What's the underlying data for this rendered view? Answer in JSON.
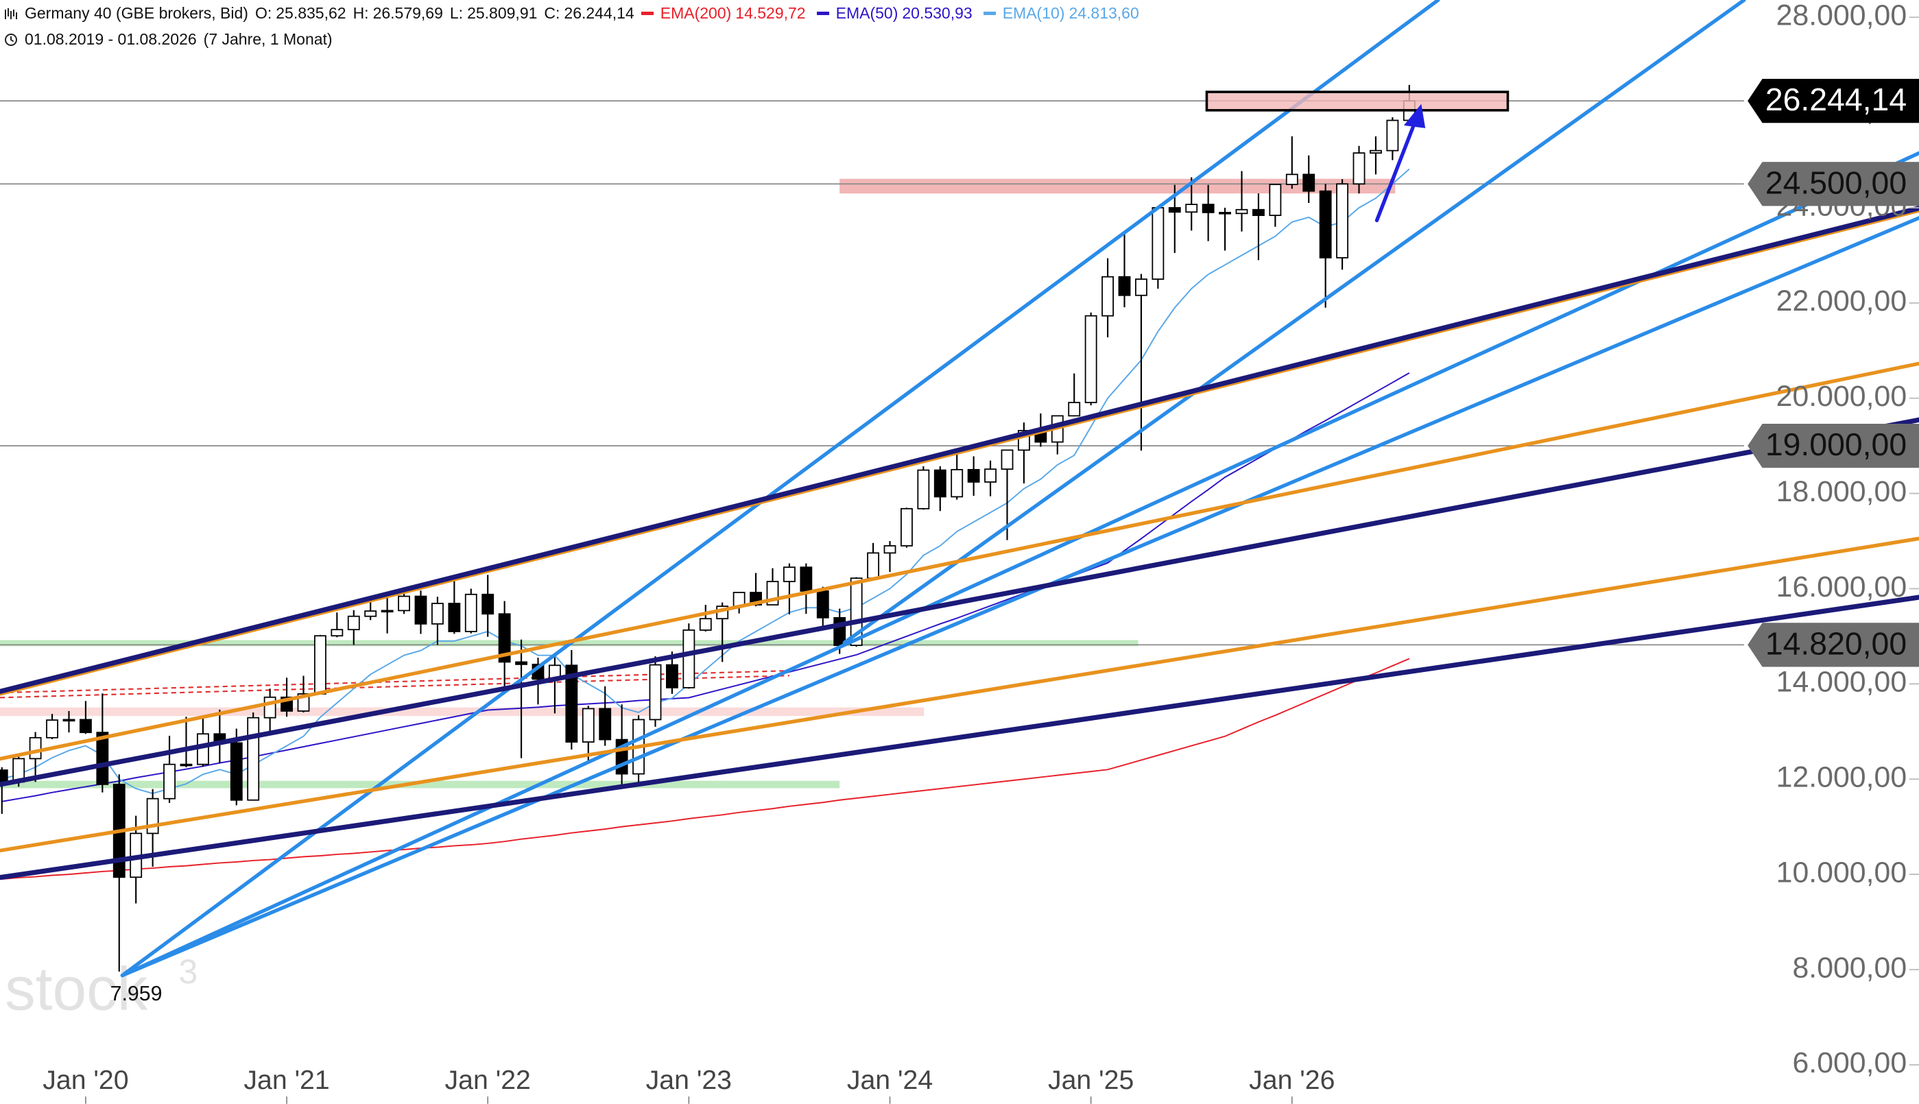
{
  "chart_data": {
    "type": "candlestick",
    "title": "Germany 40 (GBE brokers, Bid)",
    "quote": [
      {
        "key": "O:",
        "label": "25.835,62"
      },
      {
        "key": "H:",
        "label": "26.579,69"
      },
      {
        "key": "L:",
        "label": "25.809,91"
      },
      {
        "key": "C:",
        "label": "26.244,14"
      }
    ],
    "date_range": "01.08.2019 - 01.08.2026",
    "duration": "(7 Jahre, 1 Monat)",
    "categories": [
      null,
      null,
      null,
      null,
      null,
      "Jan '20",
      null,
      null,
      null,
      null,
      null,
      null,
      null,
      null,
      null,
      null,
      null,
      "Jan '21",
      null,
      null,
      null,
      null,
      null,
      null,
      null,
      null,
      null,
      null,
      null,
      "Jan '22",
      null,
      null,
      null,
      null,
      null,
      null,
      null,
      null,
      null,
      null,
      null,
      "Jan '23",
      null,
      null,
      null,
      null,
      null,
      null,
      null,
      null,
      null,
      null,
      null,
      "Jan '24",
      null,
      null,
      null,
      null,
      null,
      null,
      null,
      null,
      null,
      null,
      null,
      "Jan '25",
      null,
      null,
      null,
      null,
      null,
      null,
      null,
      null,
      null,
      null,
      null,
      "Jan '26",
      null,
      null,
      null,
      null,
      null,
      null,
      null
    ],
    "open": [
      12190,
      11940,
      12430,
      12870,
      13240,
      13250,
      12980,
      11890,
      9940,
      10860,
      11590,
      12310,
      12310,
      12950,
      12760,
      11560,
      13290,
      13720,
      13430,
      13790,
      15010,
      15140,
      15420,
      15530,
      15540,
      15840,
      15260,
      15690,
      15100,
      15880,
      15470,
      14460,
      14410,
      14100,
      14390,
      12780,
      13480,
      12830,
      12110,
      13250,
      14400,
      13920,
      15130,
      15370,
      15630,
      15920,
      15660,
      16150,
      16450,
      15950,
      15390,
      14810,
      16220,
      16750,
      16900,
      17680,
      18490,
      17930,
      18500,
      18240,
      18510,
      18910,
      19320,
      19080,
      19630,
      19910,
      21730,
      22550,
      22160,
      22500,
      24000,
      23910,
      24070,
      23900,
      23880,
      23960,
      23840,
      24490,
      24700,
      24350,
      22950,
      24500,
      25150,
      25200,
      25835.62
    ],
    "high": [
      12250,
      12490,
      12990,
      13370,
      13430,
      13640,
      13800,
      12100,
      11230,
      11790,
      12910,
      13310,
      13270,
      13460,
      13060,
      13400,
      13900,
      14130,
      14170,
      15030,
      15500,
      15550,
      15800,
      15810,
      16030,
      15960,
      15830,
      16290,
      16000,
      16290,
      15740,
      14930,
      14550,
      14560,
      14710,
      13540,
      13950,
      13570,
      13340,
      14580,
      14680,
      15270,
      15660,
      15710,
      15900,
      16330,
      16430,
      16530,
      16530,
      16040,
      15580,
      16240,
      16960,
      17000,
      17700,
      18570,
      18570,
      18890,
      18780,
      18690,
      18910,
      19490,
      19680,
      19640,
      20520,
      21800,
      22940,
      23480,
      22610,
      24030,
      24480,
      24640,
      24480,
      24000,
      24770,
      24300,
      24500,
      25500,
      25100,
      24500,
      24600,
      25300,
      25500,
      25900,
      26579.69
    ],
    "low": [
      11270,
      11840,
      11940,
      12840,
      12980,
      12950,
      11720,
      7959,
      9390,
      10160,
      11500,
      12250,
      12260,
      12340,
      11450,
      11590,
      13000,
      13310,
      13400,
      13780,
      14980,
      14820,
      15340,
      15060,
      15470,
      15050,
      14820,
      15050,
      15060,
      14990,
      13800,
      12440,
      13570,
      13380,
      12620,
      12390,
      12700,
      11860,
      11870,
      13100,
      13790,
      13900,
      15100,
      14460,
      15480,
      15630,
      15700,
      15460,
      15470,
      15150,
      14630,
      14780,
      16200,
      16350,
      16860,
      17660,
      17630,
      17870,
      17950,
      17940,
      17020,
      18210,
      18980,
      18820,
      19630,
      19850,
      21280,
      21910,
      18900,
      22300,
      23050,
      23520,
      23300,
      23100,
      23500,
      22900,
      23600,
      24400,
      24100,
      21900,
      22700,
      24300,
      24700,
      25000,
      25809.91
    ],
    "close": [
      11940,
      12430,
      12870,
      13240,
      13250,
      12980,
      11890,
      9940,
      10860,
      11590,
      12310,
      12310,
      12950,
      12760,
      11560,
      13290,
      13720,
      13430,
      13790,
      15010,
      15140,
      15420,
      15530,
      15540,
      15840,
      15260,
      15690,
      15100,
      15880,
      15470,
      14460,
      14410,
      14100,
      14390,
      12780,
      13480,
      12830,
      12110,
      13250,
      14400,
      13920,
      15130,
      15370,
      15630,
      15920,
      15660,
      16150,
      16450,
      15950,
      15390,
      14810,
      16220,
      16750,
      16900,
      17680,
      18490,
      17930,
      18500,
      18240,
      18510,
      18910,
      19320,
      19080,
      19630,
      19910,
      21730,
      22550,
      22160,
      22500,
      24000,
      23910,
      24070,
      23900,
      23880,
      23960,
      23840,
      24490,
      24700,
      24350,
      22950,
      24500,
      25150,
      25200,
      25835,
      26244.14
    ],
    "up_color": "#ffffff",
    "down_color": "#000000",
    "series": [
      {
        "name": "EMA(200)",
        "color": "#e8202a",
        "value_label": "14.529,72",
        "values": [
          9900,
          9930,
          9950,
          9980,
          10000,
          10030,
          10060,
          10080,
          10110,
          10130,
          10160,
          10180,
          10210,
          10240,
          10260,
          10290,
          10310,
          10340,
          10370,
          10390,
          10420,
          10440,
          10470,
          10500,
          10520,
          10550,
          10570,
          10600,
          10620,
          10650,
          10690,
          10740,
          10780,
          10820,
          10870,
          10910,
          10950,
          11000,
          11040,
          11080,
          11120,
          11170,
          11210,
          11250,
          11300,
          11340,
          11380,
          11430,
          11470,
          11510,
          11560,
          11600,
          11640,
          11680,
          11720,
          11760,
          11800,
          11840,
          11880,
          11920,
          11960,
          12000,
          12040,
          12080,
          12120,
          12160,
          12200,
          12300,
          12400,
          12500,
          12600,
          12700,
          12800,
          12900,
          13050,
          13200,
          13340,
          13490,
          13640,
          13790,
          13940,
          14090,
          14230,
          14380,
          14529.72
        ]
      },
      {
        "name": "EMA(50)",
        "color": "#2c14c8",
        "value_label": "20.530,93",
        "values": [
          11530,
          11590,
          11650,
          11720,
          11780,
          11840,
          11900,
          11960,
          12030,
          12090,
          12150,
          12210,
          12270,
          12340,
          12400,
          12470,
          12540,
          12610,
          12680,
          12750,
          12820,
          12890,
          12960,
          13030,
          13100,
          13170,
          13240,
          13310,
          13380,
          13450,
          13470,
          13490,
          13510,
          13540,
          13560,
          13580,
          13600,
          13620,
          13650,
          13670,
          13690,
          13710,
          13800,
          13890,
          13980,
          14070,
          14160,
          14250,
          14340,
          14430,
          14520,
          14610,
          14740,
          14870,
          15000,
          15130,
          15260,
          15380,
          15510,
          15640,
          15770,
          15900,
          16030,
          16150,
          16280,
          16410,
          16540,
          16800,
          17050,
          17310,
          17570,
          17830,
          18080,
          18340,
          18540,
          18740,
          18940,
          19140,
          19340,
          19530,
          19730,
          19930,
          20130,
          20330,
          20530.93
        ]
      },
      {
        "name": "EMA(10)",
        "color": "#5aa8e8",
        "value_label": "24.813,60",
        "values": [
          12000,
          12100,
          12250,
          12450,
          12600,
          12700,
          12500,
          12000,
          11800,
          11700,
          11800,
          11900,
          12100,
          12200,
          12100,
          12300,
          12500,
          12700,
          12900,
          13300,
          13600,
          13900,
          14200,
          14400,
          14600,
          14700,
          14900,
          14900,
          15000,
          15100,
          14900,
          14800,
          14600,
          14600,
          14200,
          14000,
          13800,
          13500,
          13400,
          13600,
          13700,
          14000,
          14300,
          14600,
          14900,
          15100,
          15300,
          15500,
          15600,
          15600,
          15500,
          15600,
          15800,
          16000,
          16300,
          16700,
          16900,
          17200,
          17400,
          17600,
          17800,
          18100,
          18300,
          18600,
          18800,
          19400,
          20000,
          20400,
          20800,
          21400,
          21900,
          22300,
          22600,
          22800,
          23000,
          23200,
          23400,
          23700,
          23800,
          23600,
          23700,
          24000,
          24200,
          24500,
          24813.6
        ]
      }
    ],
    "ylim": [
      5180,
      28360
    ],
    "yticks": [
      {
        "value": 6000,
        "label": "6.000,00"
      },
      {
        "value": 8000,
        "label": "8.000,00"
      },
      {
        "value": 10000,
        "label": "10.000,00"
      },
      {
        "value": 12000,
        "label": "12.000,00"
      },
      {
        "value": 14000,
        "label": "14.000,00"
      },
      {
        "value": 16000,
        "label": "16.000,00"
      },
      {
        "value": 18000,
        "label": "18.000,00"
      },
      {
        "value": 20000,
        "label": "20.000,00"
      },
      {
        "value": 22000,
        "label": "22.000,00"
      },
      {
        "value": 24000,
        "label": "24.000,00"
      },
      {
        "value": 26000,
        "label": "26.000,00"
      },
      {
        "value": 28000,
        "label": "28.000,00"
      }
    ],
    "grid": false,
    "levels": [
      {
        "value": 26244.14,
        "label": "26.244,14",
        "color": "#000000"
      },
      {
        "value": 24500,
        "label": "24.500,00",
        "color": "#6e6e6e"
      },
      {
        "value": 19000,
        "label": "19.000,00",
        "color": "#6e6e6e"
      },
      {
        "value": 14820,
        "label": "14.820,00",
        "color": "#6e6e6e"
      }
    ],
    "annotations": {
      "low_label": "7.959"
    },
    "watermark": [
      "stock",
      "3"
    ]
  }
}
